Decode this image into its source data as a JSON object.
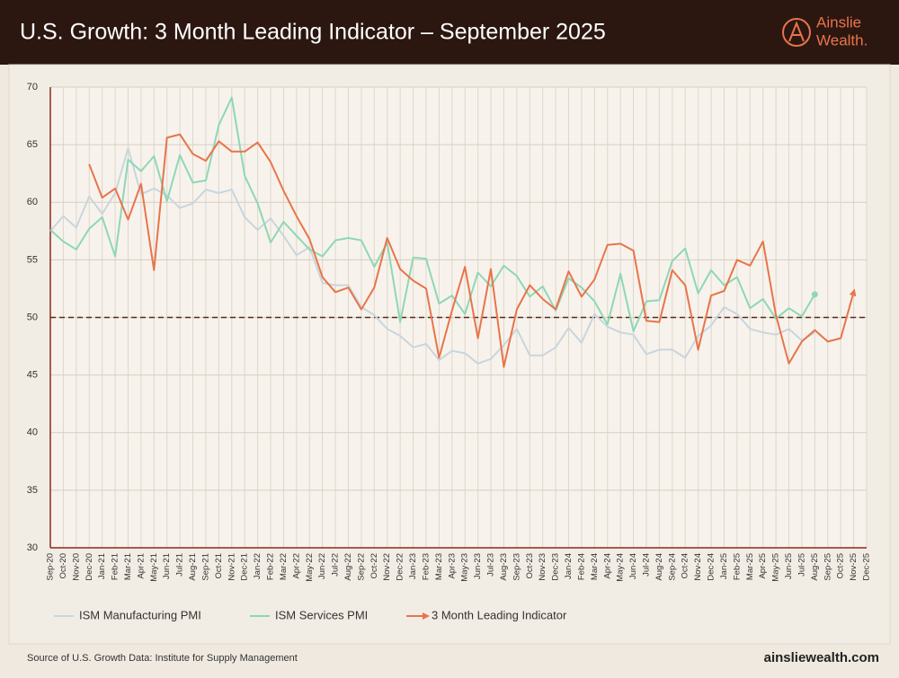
{
  "brand": {
    "name": "Ainslie",
    "name2": "Wealth."
  },
  "footer": {
    "source": "Source of U.S. Growth Data: Institute for Supply Management",
    "website": "ainsliewealth.com"
  },
  "chart_data": {
    "type": "line",
    "title": "U.S. Growth: 3 Month Leading Indicator – September 2025",
    "categories": [
      "Sep-20",
      "Oct-20",
      "Nov-20",
      "Dec-20",
      "Jan-21",
      "Feb-21",
      "Mar-21",
      "Apr-21",
      "May-21",
      "Jun-21",
      "Jul-21",
      "Aug-21",
      "Sep-21",
      "Oct-21",
      "Nov-21",
      "Dec-21",
      "Jan-22",
      "Feb-22",
      "Mar-22",
      "Apr-22",
      "May-22",
      "Jun-22",
      "Jul-22",
      "Aug-22",
      "Sep-22",
      "Oct-22",
      "Nov-22",
      "Dec-22",
      "Jan-23",
      "Feb-23",
      "Mar-23",
      "Apr-23",
      "May-23",
      "Jun-23",
      "Jul-23",
      "Aug-23",
      "Sep-23",
      "Oct-23",
      "Nov-23",
      "Dec-23",
      "Jan-24",
      "Feb-24",
      "Mar-24",
      "Apr-24",
      "May-24",
      "Jun-24",
      "Jul-24",
      "Aug-24",
      "Sep-24",
      "Oct-24",
      "Nov-24",
      "Dec-24",
      "Jan-25",
      "Feb-25",
      "Mar-25",
      "Apr-25",
      "May-25",
      "Jun-25",
      "Jul-25",
      "Aug-25",
      "Sep-25",
      "Oct-25",
      "Nov-25",
      "Dec-25"
    ],
    "series": [
      {
        "name": "ISM Manufacturing PMI",
        "color": "#c9d5dd",
        "values": [
          57.5,
          58.8,
          57.8,
          60.5,
          59.0,
          60.8,
          64.7,
          60.7,
          61.2,
          60.6,
          59.5,
          59.9,
          61.1,
          60.8,
          61.1,
          58.7,
          57.6,
          58.6,
          57.1,
          55.4,
          56.1,
          53.0,
          52.8,
          52.8,
          50.9,
          50.2,
          49.0,
          48.4,
          47.4,
          47.7,
          46.3,
          47.1,
          46.9,
          46.0,
          46.4,
          47.6,
          49.0,
          46.7,
          46.7,
          47.4,
          49.1,
          47.8,
          50.3,
          49.2,
          48.7,
          48.5,
          46.8,
          47.2,
          47.2,
          46.5,
          48.4,
          49.3,
          50.9,
          50.3,
          49.0,
          48.7,
          48.5,
          49.0,
          48.0,
          48.7,
          null,
          null,
          null,
          null
        ]
      },
      {
        "name": "ISM Services PMI",
        "color": "#8ed7b6",
        "values": [
          57.6,
          56.6,
          55.9,
          57.7,
          58.7,
          55.3,
          63.7,
          62.7,
          64.0,
          60.1,
          64.1,
          61.7,
          61.9,
          66.7,
          69.1,
          62.3,
          59.9,
          56.5,
          58.3,
          57.1,
          55.9,
          55.3,
          56.7,
          56.9,
          56.7,
          54.4,
          56.5,
          49.6,
          55.2,
          55.1,
          51.2,
          51.9,
          50.3,
          53.9,
          52.7,
          54.5,
          53.6,
          51.8,
          52.7,
          50.6,
          53.4,
          52.6,
          51.4,
          49.4,
          53.8,
          48.8,
          51.4,
          51.5,
          54.9,
          56.0,
          52.1,
          54.1,
          52.8,
          53.5,
          50.8,
          51.6,
          49.9,
          50.8,
          50.1,
          52.0,
          null,
          null,
          null,
          null
        ]
      },
      {
        "name": "3 Month Leading Indicator",
        "color": "#e8744b",
        "values": [
          null,
          null,
          null,
          63.3,
          60.4,
          61.2,
          58.5,
          61.6,
          54.1,
          65.6,
          65.9,
          64.2,
          63.6,
          65.3,
          64.4,
          64.4,
          65.2,
          63.5,
          61.0,
          58.8,
          56.8,
          53.5,
          52.2,
          52.6,
          50.7,
          52.6,
          56.9,
          54.2,
          53.2,
          52.5,
          46.5,
          50.6,
          54.4,
          48.2,
          54.2,
          45.7,
          50.7,
          52.8,
          51.6,
          50.7,
          54.0,
          51.8,
          53.3,
          56.3,
          56.4,
          55.8,
          49.7,
          49.6,
          54.1,
          52.8,
          47.2,
          51.9,
          52.3,
          55.0,
          54.5,
          56.6,
          50.2,
          46.0,
          47.9,
          48.9,
          47.9,
          48.2,
          52.2,
          null
        ]
      }
    ],
    "ylim": [
      30,
      70
    ],
    "yticks": [
      30,
      35,
      40,
      45,
      50,
      55,
      60,
      65,
      70
    ],
    "grid": true,
    "hline": 50,
    "legend": "bottom"
  }
}
